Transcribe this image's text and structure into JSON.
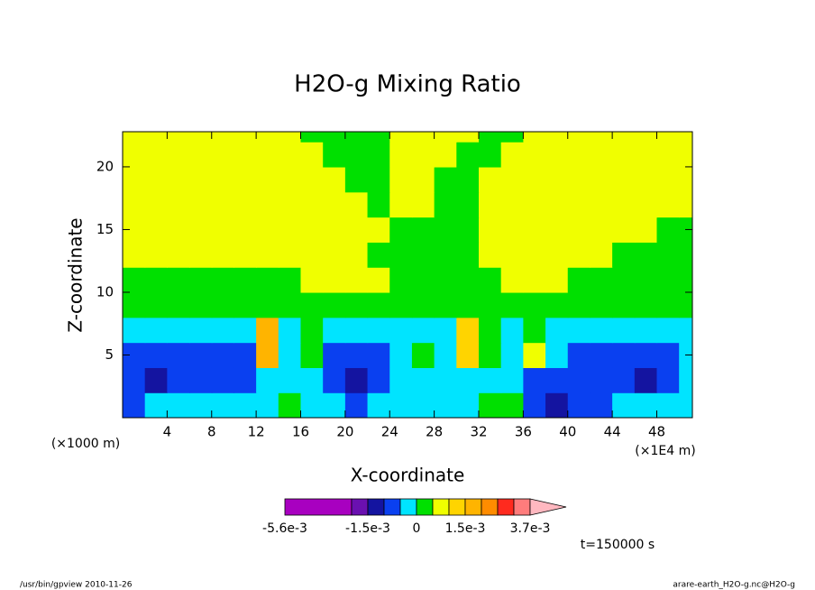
{
  "chart_data": {
    "type": "contour",
    "title": "H2O-g Mixing Ratio",
    "x_label": "X-coordinate",
    "y_label": "Z-coordinate",
    "x_unit_left": "(×1000 m)",
    "x_unit_right": "(×1E4 m)",
    "annotation": "t=150000 s",
    "footer_left": "/usr/bin/gpview  2010-11-26",
    "footer_right": "arare-earth_H2O-g.nc@H2O-g",
    "xlim": [
      0,
      51.2
    ],
    "ylim": [
      0,
      22.8
    ],
    "xticks": [
      4,
      8,
      12,
      16,
      20,
      24,
      28,
      32,
      36,
      40,
      44,
      48
    ],
    "yticks": [
      5,
      10,
      15,
      20
    ],
    "x": [
      1,
      3,
      5,
      7,
      9,
      11,
      13,
      15,
      17,
      19,
      21,
      23,
      25,
      27,
      29,
      31,
      33,
      35,
      37,
      39,
      41,
      43,
      45,
      47,
      49,
      51
    ],
    "z": [
      1,
      3,
      5,
      7,
      9,
      11,
      13,
      15,
      17,
      19,
      21,
      23
    ],
    "field": [
      [
        -0.0007,
        -0.0002,
        -0.0002,
        -0.0002,
        -0.0002,
        -0.0002,
        -0.0002,
        0.0002,
        -0.0002,
        -0.0002,
        -0.0007,
        -0.0002,
        -0.0002,
        -0.0002,
        -0.0002,
        -0.0002,
        0.0002,
        0.0002,
        -0.0007,
        -0.0012,
        -0.0007,
        -0.0007,
        -0.0002,
        -0.0002,
        -0.0002,
        -0.0002
      ],
      [
        -0.0007,
        -0.0012,
        -0.0007,
        -0.0007,
        -0.0007,
        -0.0007,
        -0.0002,
        -0.0002,
        -0.0002,
        -0.0007,
        -0.0012,
        -0.0007,
        -0.0002,
        -0.0002,
        -0.0002,
        -0.0002,
        -0.0002,
        -0.0002,
        -0.0007,
        -0.0007,
        -0.0007,
        -0.0007,
        -0.0007,
        -0.0012,
        -0.0007,
        -0.0002
      ],
      [
        -0.0007,
        -0.0007,
        -0.0007,
        -0.0007,
        -0.0007,
        -0.0007,
        0.0017,
        -0.0002,
        0.0002,
        -0.0007,
        -0.0007,
        -0.0007,
        -0.0002,
        0.0002,
        -0.0002,
        0.0012,
        0.0002,
        -0.0002,
        0.0007,
        -0.0002,
        -0.0007,
        -0.0007,
        -0.0007,
        -0.0007,
        -0.0007,
        -0.0002
      ],
      [
        -0.0002,
        -0.0002,
        -0.0002,
        -0.0002,
        -0.0002,
        -0.0002,
        0.0017,
        -0.0002,
        0.0002,
        -0.0002,
        -0.0002,
        -0.0002,
        -0.0002,
        -0.0002,
        -0.0002,
        0.0012,
        0.0002,
        -0.0002,
        0.0002,
        -0.0002,
        -0.0002,
        -0.0002,
        -0.0002,
        -0.0002,
        -0.0002,
        -0.0002
      ],
      [
        0.0002,
        0.0002,
        0.0002,
        0.0002,
        0.0002,
        0.0002,
        0.0002,
        0.0002,
        0.0002,
        0.0002,
        0.0002,
        0.0002,
        0.0002,
        0.0002,
        0.0002,
        0.0002,
        0.0002,
        0.0002,
        0.0002,
        0.0002,
        0.0002,
        0.0002,
        0.0002,
        0.0002,
        0.0002,
        0.0002
      ],
      [
        0.0002,
        0.0002,
        0.0002,
        0.0002,
        0.0002,
        0.0002,
        0.0002,
        0.0002,
        0.0007,
        0.0007,
        0.0007,
        0.0007,
        0.0002,
        0.0002,
        0.0002,
        0.0002,
        0.0002,
        0.0007,
        0.0007,
        0.0007,
        0.0002,
        0.0002,
        0.0002,
        0.0002,
        0.0002,
        0.0002
      ],
      [
        0.0007,
        0.0007,
        0.0007,
        0.0007,
        0.0007,
        0.0007,
        0.0007,
        0.0007,
        0.0007,
        0.0007,
        0.0007,
        0.0002,
        0.0002,
        0.0002,
        0.0002,
        0.0002,
        0.0007,
        0.0007,
        0.0007,
        0.0007,
        0.0007,
        0.0007,
        0.0002,
        0.0002,
        0.0002,
        0.0002
      ],
      [
        0.0007,
        0.0007,
        0.0007,
        0.0007,
        0.0007,
        0.0007,
        0.0007,
        0.0007,
        0.0007,
        0.0007,
        0.0007,
        0.0007,
        0.0002,
        0.0002,
        0.0002,
        0.0002,
        0.0007,
        0.0007,
        0.0007,
        0.0007,
        0.0007,
        0.0007,
        0.0007,
        0.0007,
        0.0002,
        0.0002
      ],
      [
        0.0007,
        0.0007,
        0.0007,
        0.0007,
        0.0007,
        0.0007,
        0.0007,
        0.0007,
        0.0007,
        0.0007,
        0.0007,
        0.0002,
        0.0007,
        0.0007,
        0.0002,
        0.0002,
        0.0007,
        0.0007,
        0.0007,
        0.0007,
        0.0007,
        0.0007,
        0.0007,
        0.0007,
        0.0007,
        0.0007
      ],
      [
        0.0007,
        0.0007,
        0.0007,
        0.0007,
        0.0007,
        0.0007,
        0.0007,
        0.0007,
        0.0007,
        0.0007,
        0.0002,
        0.0002,
        0.0007,
        0.0007,
        0.0002,
        0.0002,
        0.0007,
        0.0007,
        0.0007,
        0.0007,
        0.0007,
        0.0007,
        0.0007,
        0.0007,
        0.0007,
        0.0007
      ],
      [
        0.0007,
        0.0007,
        0.0007,
        0.0007,
        0.0007,
        0.0007,
        0.0007,
        0.0007,
        0.0007,
        0.0002,
        0.0002,
        0.0002,
        0.0007,
        0.0007,
        0.0007,
        0.0002,
        0.0002,
        0.0007,
        0.0007,
        0.0007,
        0.0007,
        0.0007,
        0.0007,
        0.0007,
        0.0007,
        0.0007
      ],
      [
        0.0007,
        0.0007,
        0.0007,
        0.0007,
        0.0007,
        0.0007,
        0.0007,
        0.0007,
        0.0002,
        0.0002,
        0.0002,
        0.0002,
        0.0007,
        0.0007,
        0.0007,
        0.0007,
        0.0002,
        0.0002,
        0.0007,
        0.0007,
        0.0007,
        0.0007,
        0.0007,
        0.0007,
        0.0007,
        0.0007
      ]
    ],
    "colorbar": {
      "levels": [
        -0.0056,
        -0.002,
        -0.0015,
        -0.001,
        -0.0005,
        0,
        0.0005,
        0.001,
        0.0015,
        0.002,
        0.0025,
        0.003,
        0.0037
      ],
      "colors": [
        "#a800c0",
        "#6a10b0",
        "#1414a0",
        "#0a40f0",
        "#00e4ff",
        "#00e000",
        "#f0ff00",
        "#ffd400",
        "#ffb400",
        "#ff8c00",
        "#ff2a1e",
        "#ff7c7c"
      ],
      "over_color": "#ffb8c0",
      "ticks": [
        {
          "value": -0.0056,
          "label": "-5.6e-3"
        },
        {
          "value": -0.0015,
          "label": "-1.5e-3"
        },
        0,
        {
          "value": 0.0015,
          "label": "1.5e-3"
        },
        {
          "value": 0.0037,
          "label": "3.7e-3"
        }
      ]
    }
  }
}
